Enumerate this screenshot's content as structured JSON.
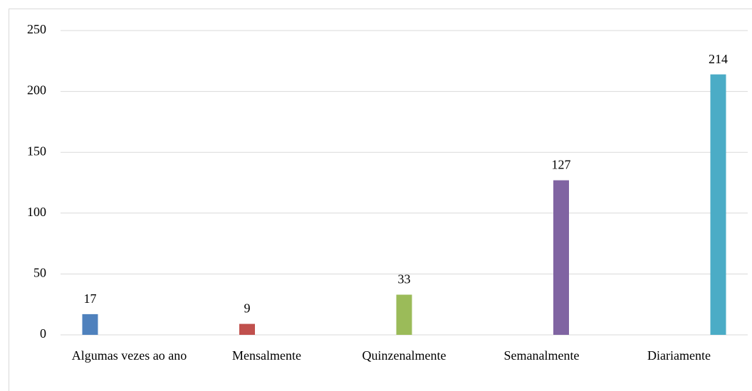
{
  "chart_data": {
    "type": "bar",
    "categories": [
      "Algumas vezes ao ano",
      "Mensalmente",
      "Quinzenalmente",
      "Semanalmente",
      "Diariamente"
    ],
    "values": [
      17,
      9,
      33,
      127,
      214
    ],
    "colors": [
      "#4f81bd",
      "#c0504d",
      "#9bbb59",
      "#8064a2",
      "#4bacc6"
    ],
    "ylim": [
      0,
      250
    ],
    "yticks": [
      0,
      50,
      100,
      150,
      200,
      250
    ],
    "grid": true
  }
}
